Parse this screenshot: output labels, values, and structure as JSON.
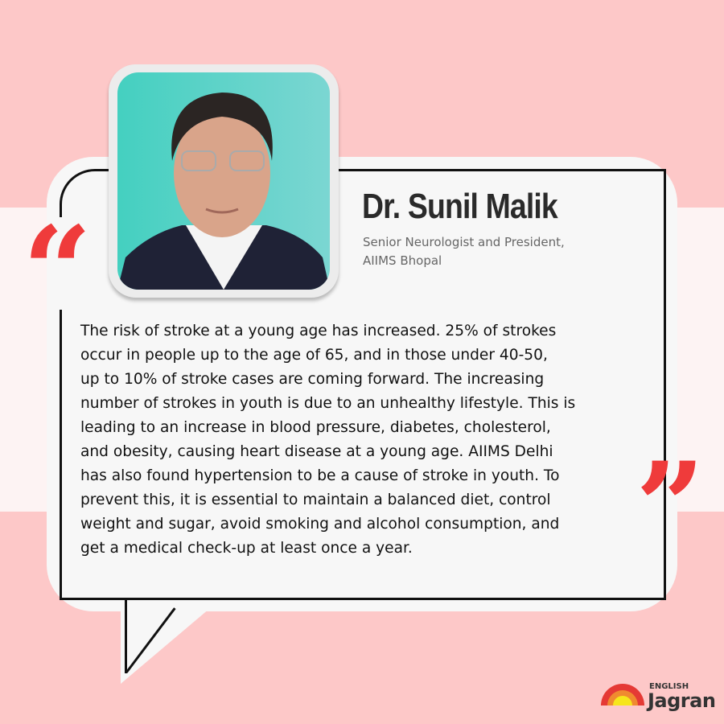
{
  "speaker": {
    "name": "Dr. Sunil Malik",
    "role_lines": [
      "Senior Neurologist and President,",
      "AIIMS Bhopal"
    ]
  },
  "quote_lines": [
    "The risk of stroke at a young age has increased. 25% of strokes",
    "occur in people up to the age of 65, and in those under 40-50,",
    "up to 10% of stroke cases are coming forward. The increasing",
    "number of strokes in youth is due to an unhealthy lifestyle. This is",
    "leading to an increase in blood pressure, diabetes, cholesterol,",
    "and obesity, causing heart disease at a young age. AIIMS Delhi",
    "has also found hypertension to be a cause of stroke in youth. To",
    "prevent this, it is essential to maintain a balanced diet, control",
    "weight and sugar, avoid smoking and alcohol consumption, and",
    "get a medical check-up at least once a year."
  ],
  "marks": {
    "open": "“",
    "close": "”"
  },
  "logo": {
    "top": "ENGLISH",
    "main": "Jagran"
  },
  "colors": {
    "background": "#fdc8c8",
    "accent": "#ef3b3b",
    "photo_bg": "#5fd3c9"
  }
}
